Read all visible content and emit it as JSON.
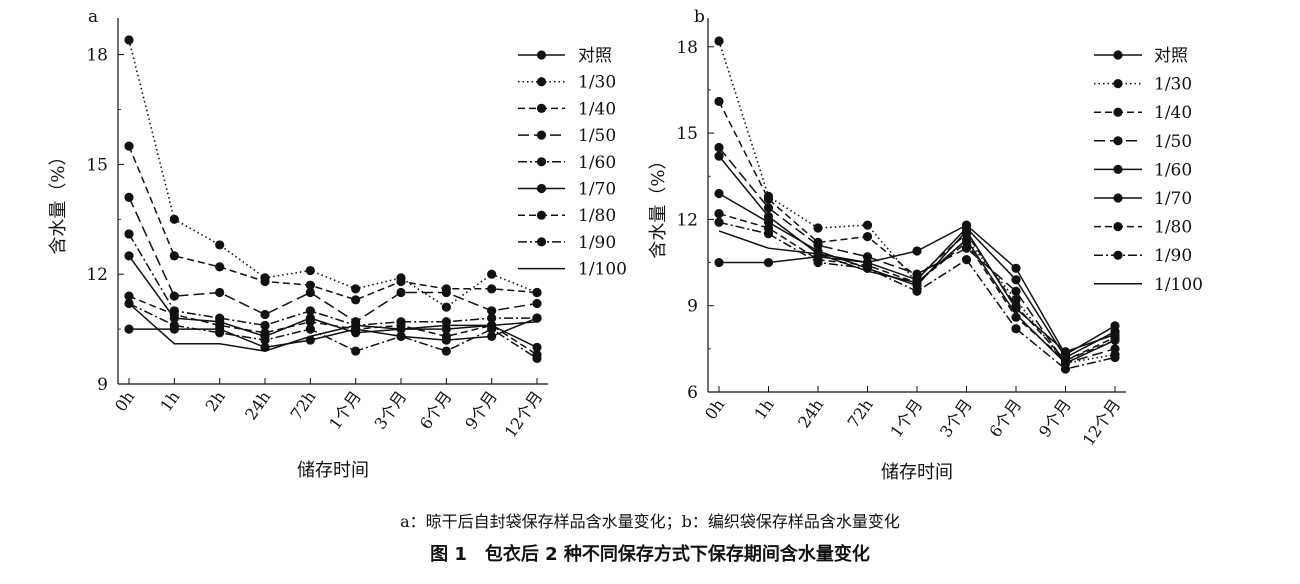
{
  "chart_data": [
    {
      "panel_label": "a",
      "type": "line",
      "xlabel": "储存时间",
      "ylabel": "含水量（%）",
      "ylim": [
        9,
        19
      ],
      "yticks": [
        9,
        12,
        15,
        18
      ],
      "categories": [
        "0h",
        "1h",
        "2h",
        "24h",
        "72h",
        "1个月",
        "3个月",
        "6个月",
        "9个月",
        "12个月"
      ],
      "legend_position": "right",
      "series": [
        {
          "name": "对照",
          "style": "solid",
          "marker": true,
          "values": [
            10.5,
            10.5,
            10.5,
            10.0,
            10.2,
            10.5,
            10.3,
            10.2,
            10.3,
            10.8
          ]
        },
        {
          "name": "1/30",
          "style": "dotted",
          "marker": true,
          "values": [
            18.4,
            13.5,
            12.8,
            11.9,
            12.1,
            11.6,
            11.9,
            11.1,
            12.0,
            11.5
          ]
        },
        {
          "name": "1/40",
          "style": "dashed",
          "marker": true,
          "values": [
            15.5,
            12.5,
            12.2,
            11.8,
            11.7,
            11.3,
            11.8,
            11.6,
            11.6,
            11.5
          ]
        },
        {
          "name": "1/50",
          "style": "longdash",
          "marker": true,
          "values": [
            14.1,
            11.4,
            11.5,
            10.9,
            11.5,
            10.7,
            11.5,
            11.5,
            11.0,
            11.2
          ]
        },
        {
          "name": "1/60",
          "style": "dashdot",
          "marker": true,
          "values": [
            13.1,
            11.0,
            10.8,
            10.6,
            11.0,
            10.6,
            10.7,
            10.7,
            10.8,
            10.8
          ]
        },
        {
          "name": "1/70",
          "style": "solid",
          "marker": true,
          "values": [
            12.5,
            10.8,
            10.7,
            10.3,
            10.8,
            10.4,
            10.5,
            10.5,
            10.6,
            10.0
          ]
        },
        {
          "name": "1/80",
          "style": "dashed",
          "marker": true,
          "values": [
            11.4,
            10.9,
            10.6,
            10.4,
            10.7,
            10.5,
            10.6,
            10.3,
            10.6,
            9.8
          ]
        },
        {
          "name": "1/90",
          "style": "dashdot",
          "marker": true,
          "values": [
            11.2,
            10.6,
            10.4,
            10.2,
            10.5,
            9.9,
            10.3,
            9.9,
            10.5,
            9.7
          ]
        },
        {
          "name": "1/100",
          "style": "solid",
          "marker": false,
          "values": [
            11.2,
            10.1,
            10.1,
            9.9,
            10.3,
            10.6,
            10.5,
            10.6,
            10.6,
            10.7
          ]
        }
      ]
    },
    {
      "panel_label": "b",
      "type": "line",
      "xlabel": "储存时间",
      "ylabel": "含水量（%）",
      "ylim": [
        6,
        19
      ],
      "yticks": [
        6,
        9,
        12,
        15,
        18
      ],
      "categories": [
        "0h",
        "1h",
        "24h",
        "72h",
        "1个月",
        "3个月",
        "6个月",
        "9个月",
        "12个月"
      ],
      "legend_position": "right",
      "series": [
        {
          "name": "对照",
          "style": "solid",
          "marker": true,
          "values": [
            10.5,
            10.5,
            10.7,
            10.5,
            10.9,
            11.8,
            10.3,
            7.3,
            8.3
          ]
        },
        {
          "name": "1/30",
          "style": "dotted",
          "marker": true,
          "values": [
            18.2,
            12.8,
            11.7,
            11.8,
            9.8,
            11.3,
            9.2,
            7.0,
            7.3
          ]
        },
        {
          "name": "1/40",
          "style": "dashed",
          "marker": true,
          "values": [
            16.1,
            12.7,
            11.2,
            11.4,
            10.0,
            11.5,
            9.0,
            7.1,
            7.8
          ]
        },
        {
          "name": "1/50",
          "style": "longdash",
          "marker": true,
          "values": [
            14.5,
            12.4,
            11.1,
            10.7,
            10.1,
            11.0,
            9.5,
            7.0,
            7.5
          ]
        },
        {
          "name": "1/60",
          "style": "solid",
          "marker": true,
          "values": [
            14.2,
            12.1,
            10.8,
            10.5,
            9.9,
            11.7,
            9.9,
            7.2,
            8.1
          ]
        },
        {
          "name": "1/70",
          "style": "solid",
          "marker": true,
          "values": [
            12.9,
            11.9,
            10.9,
            10.3,
            9.7,
            11.6,
            8.9,
            7.4,
            8.0
          ]
        },
        {
          "name": "1/80",
          "style": "dashed",
          "marker": true,
          "values": [
            12.2,
            11.7,
            10.6,
            10.4,
            9.8,
            11.2,
            8.6,
            7.1,
            7.9
          ]
        },
        {
          "name": "1/90",
          "style": "dashdot",
          "marker": true,
          "values": [
            11.9,
            11.5,
            10.5,
            10.3,
            9.5,
            10.6,
            8.2,
            6.8,
            7.2
          ]
        },
        {
          "name": "1/100",
          "style": "solid",
          "marker": false,
          "values": [
            11.6,
            11.0,
            10.8,
            10.2,
            9.8,
            11.3,
            8.7,
            7.0,
            7.8
          ]
        }
      ]
    }
  ],
  "captions": {
    "sub": "a：晾干后自封袋保存样品含水量变化；b：编织袋保存样品含水量变化",
    "main": "图 1　包衣后 2 种不同保存方式下保存期间含水量变化"
  }
}
